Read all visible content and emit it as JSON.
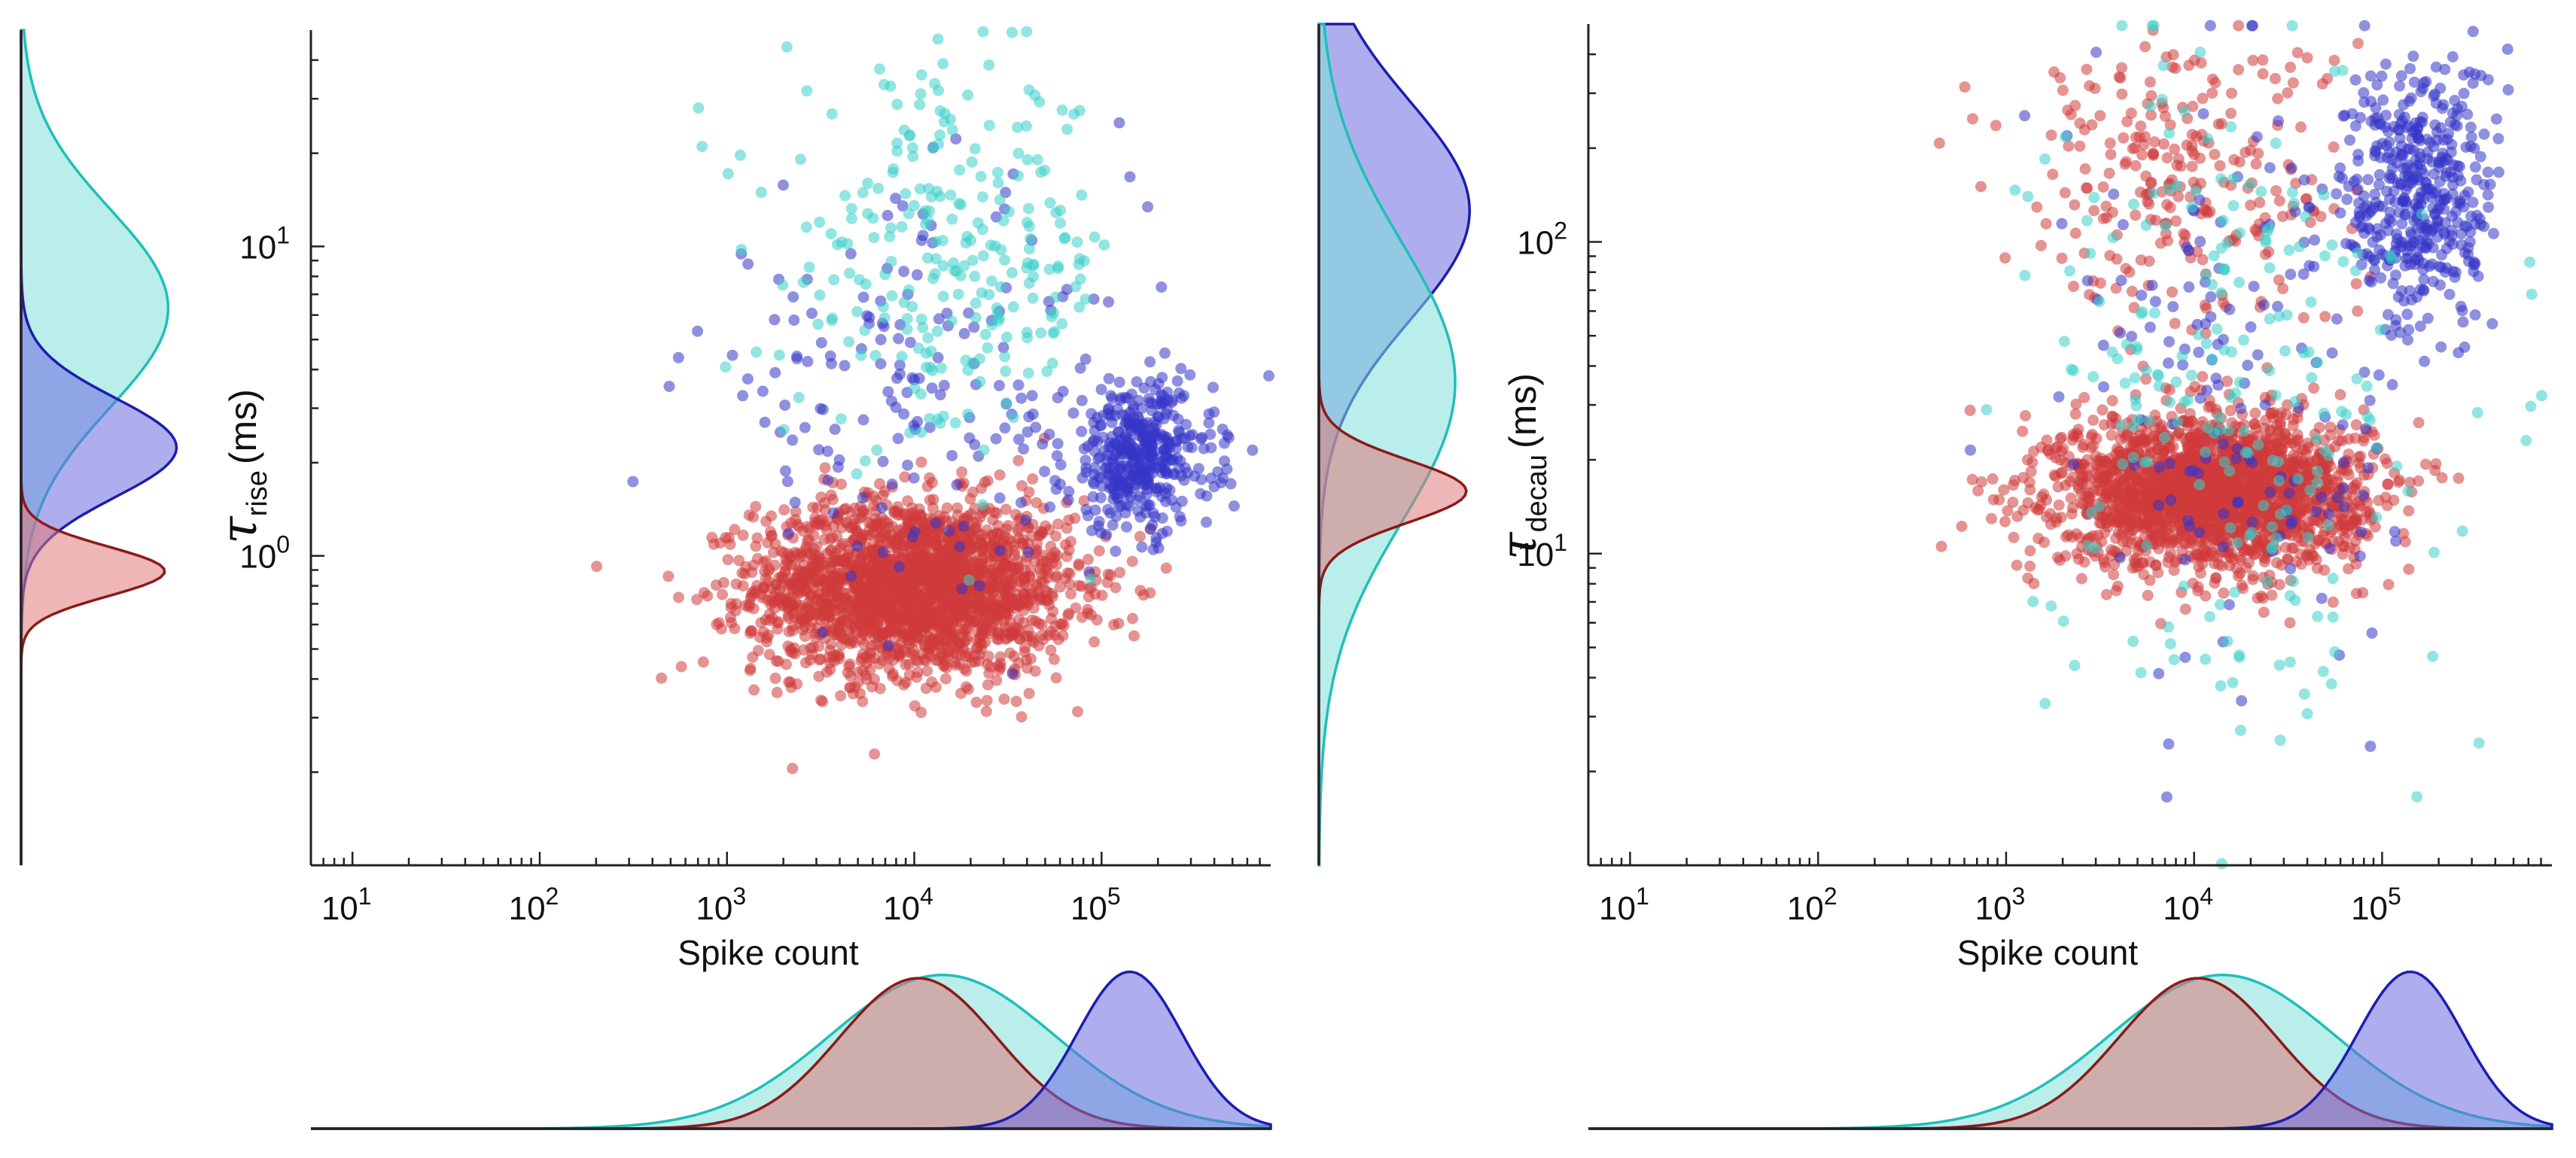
{
  "chart_data": [
    {
      "type": "scatter",
      "panel": "left",
      "xlabel": "Spike count",
      "ylabel_symbol": "τ",
      "ylabel_subscript": "rise",
      "ylabel_unit": "(ms)",
      "xscale": "log",
      "yscale": "log",
      "xlim": [
        6,
        800000
      ],
      "ylim": [
        0.1,
        50
      ],
      "x_ticks": [
        {
          "value": 10,
          "base": "10",
          "exp": "1"
        },
        {
          "value": 100,
          "base": "10",
          "exp": "2"
        },
        {
          "value": 1000,
          "base": "10",
          "exp": "3"
        },
        {
          "value": 10000,
          "base": "10",
          "exp": "4"
        },
        {
          "value": 100000,
          "base": "10",
          "exp": "5"
        }
      ],
      "y_ticks": [
        {
          "value": 1,
          "base": "10",
          "exp": "0"
        },
        {
          "value": 10,
          "base": "10",
          "exp": "1"
        }
      ],
      "series": [
        {
          "name": "red cluster",
          "color": "#d03a3a",
          "n": 2300,
          "x_log_mean": 4.0,
          "x_log_sd": 0.42,
          "y_log_mean": -0.1,
          "y_log_sd": 0.14
        },
        {
          "name": "blue cluster",
          "color": "#3434c8",
          "n": 420,
          "x_log_mean": 5.2,
          "x_log_sd": 0.2,
          "y_log_mean": 0.32,
          "y_log_sd": 0.12
        },
        {
          "name": "blue scattered",
          "color": "#3434c8",
          "n": 170,
          "x_log_mean": 4.0,
          "x_log_sd": 0.6,
          "y_log_mean": 0.55,
          "y_log_sd": 0.3
        },
        {
          "name": "cyan cluster",
          "color": "#3ad0c8",
          "n": 260,
          "x_log_mean": 4.2,
          "x_log_sd": 0.45,
          "y_log_mean": 0.95,
          "y_log_sd": 0.3
        }
      ],
      "marginal_x": [
        {
          "name": "cyan",
          "color": "#1fbfb8",
          "mean": 4.15,
          "sd": 0.6,
          "height": 0.95
        },
        {
          "name": "red",
          "color": "#8b1a1a",
          "mean": 4.02,
          "sd": 0.42,
          "height": 0.93
        },
        {
          "name": "blue",
          "color": "#1c1cb0",
          "mean": 5.15,
          "sd": 0.28,
          "height": 0.97
        }
      ],
      "marginal_y": [
        {
          "name": "cyan",
          "color": "#1fbfb8",
          "mean": 0.8,
          "sd": 0.32,
          "height": 0.88
        },
        {
          "name": "blue",
          "color": "#1c1cb0",
          "mean": 0.35,
          "sd": 0.16,
          "height": 0.93
        },
        {
          "name": "red",
          "color": "#8b1a1a",
          "mean": -0.05,
          "sd": 0.08,
          "height": 0.86
        }
      ]
    },
    {
      "type": "scatter",
      "panel": "right",
      "xlabel": "Spike count",
      "ylabel_symbol": "τ",
      "ylabel_subscript": "decau",
      "ylabel_unit": "(ms)",
      "xscale": "log",
      "yscale": "log",
      "xlim": [
        6,
        800000
      ],
      "ylim": [
        1,
        500
      ],
      "x_ticks": [
        {
          "value": 10,
          "base": "10",
          "exp": "1"
        },
        {
          "value": 100,
          "base": "10",
          "exp": "2"
        },
        {
          "value": 1000,
          "base": "10",
          "exp": "3"
        },
        {
          "value": 10000,
          "base": "10",
          "exp": "4"
        },
        {
          "value": 100000,
          "base": "10",
          "exp": "5"
        }
      ],
      "y_ticks": [
        {
          "value": 10,
          "base": "10",
          "exp": "1"
        },
        {
          "value": 100,
          "base": "10",
          "exp": "2"
        }
      ],
      "series": [
        {
          "name": "red cluster",
          "color": "#d03a3a",
          "n": 2200,
          "x_log_mean": 4.1,
          "x_log_sd": 0.4,
          "y_log_mean": 1.2,
          "y_log_sd": 0.12
        },
        {
          "name": "red upper",
          "color": "#d03a3a",
          "n": 260,
          "x_log_mean": 3.9,
          "x_log_sd": 0.45,
          "y_log_mean": 2.2,
          "y_log_sd": 0.25
        },
        {
          "name": "blue cluster",
          "color": "#3434c8",
          "n": 430,
          "x_log_mean": 5.2,
          "x_log_sd": 0.2,
          "y_log_mean": 2.15,
          "y_log_sd": 0.22
        },
        {
          "name": "blue scattered",
          "color": "#3434c8",
          "n": 160,
          "x_log_mean": 4.3,
          "x_log_sd": 0.5,
          "y_log_mean": 1.5,
          "y_log_sd": 0.5
        },
        {
          "name": "cyan scattered",
          "color": "#3ad0c8",
          "n": 230,
          "x_log_mean": 4.2,
          "x_log_sd": 0.5,
          "y_log_mean": 1.55,
          "y_log_sd": 0.55
        }
      ],
      "marginal_x": [
        {
          "name": "cyan",
          "color": "#1fbfb8",
          "mean": 4.15,
          "sd": 0.6,
          "height": 0.95
        },
        {
          "name": "red",
          "color": "#8b1a1a",
          "mean": 4.02,
          "sd": 0.42,
          "height": 0.93
        },
        {
          "name": "blue",
          "color": "#1c1cb0",
          "mean": 5.15,
          "sd": 0.28,
          "height": 0.97
        }
      ],
      "marginal_y": [
        {
          "name": "blue",
          "color": "#1c1cb0",
          "mean": 2.1,
          "sd": 0.35,
          "height": 0.94
        },
        {
          "name": "cyan",
          "color": "#1fbfb8",
          "mean": 1.55,
          "sd": 0.45,
          "height": 0.85
        },
        {
          "name": "red",
          "color": "#8b1a1a",
          "mean": 1.2,
          "sd": 0.1,
          "height": 0.92
        }
      ]
    }
  ]
}
